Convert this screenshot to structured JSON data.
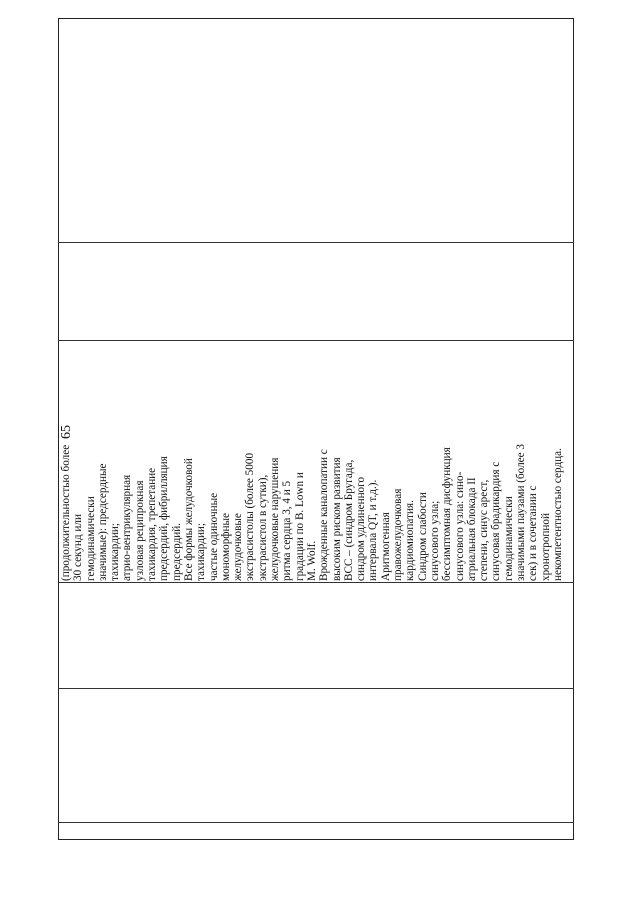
{
  "page_number": "65",
  "table": {
    "cell_lines": [
      "(продолжительностью более",
      "30 секунд или",
      "гемодинамически",
      "значимые): предсердные",
      "тахикардии;",
      "атрио-вентрикулярная",
      "узловая реципрокная",
      "тахикардия, трепетание",
      "предсердий, фибрилляция",
      "предсердий.",
      "Все формы желудочковой",
      "тахикардии;",
      "частые одиночные",
      "мономорфные",
      "желудочковые",
      "экстрасистолы (более 5000",
      "экстрасистол в сутки),",
      "желудочковые нарушения",
      "ритма сердца 3, 4 и 5",
      "градации по B. Lown и",
      "M. Wolf.",
      "Врожденные каналопатии с",
      "высоким риском развития",
      "ВСС – (синдром Бругада,",
      "синдром удлиненного",
      "интервала QT, и т.д.).",
      "Аритмогенная",
      "правожелудочковая",
      "кардиомиопатия.",
      "Синдром слабости",
      "синусового узла;",
      "бессимптомная дисфункция",
      "синусового узла: сино-",
      "атриальная блокада II",
      "степени, синус арест,",
      "синусовая брадикардия с",
      "гемодинамически",
      "значимыми паузами (более 3",
      "сек) и в сочетании с",
      "хронотропной",
      "некомпетентностью сердца."
    ]
  }
}
